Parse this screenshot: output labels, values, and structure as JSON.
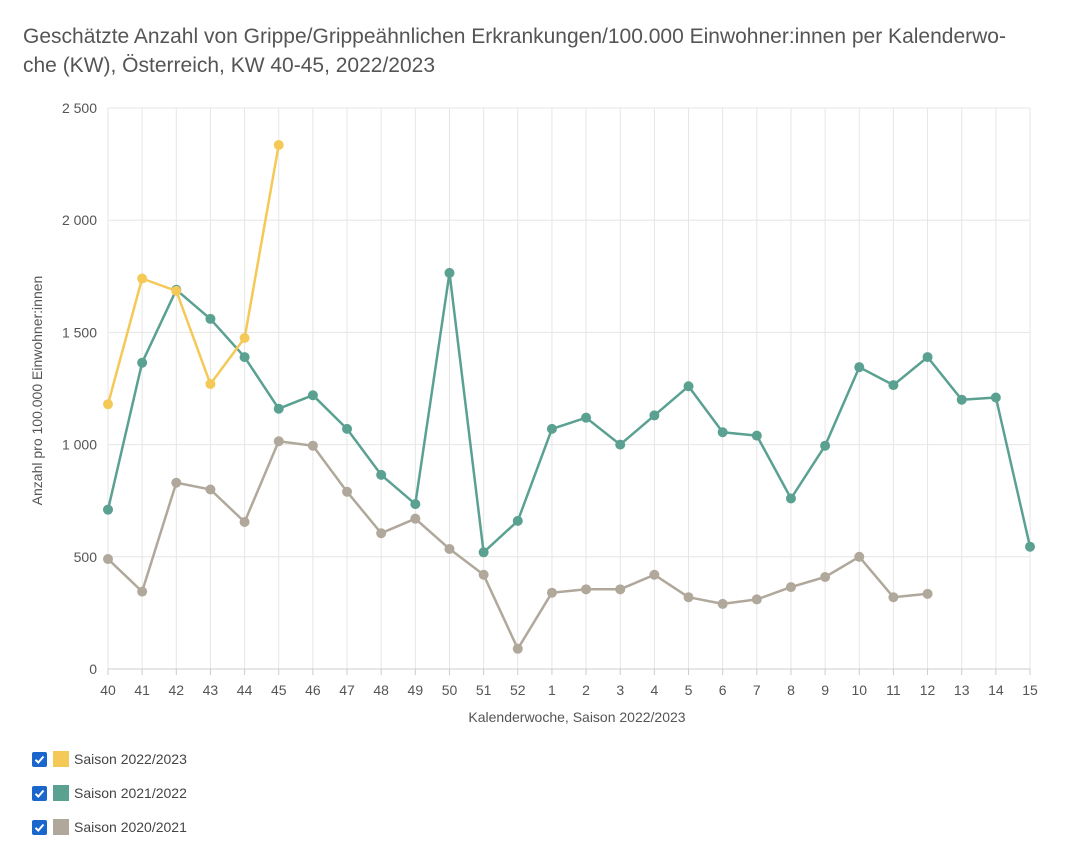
{
  "title": "Geschätzte Anzahl von Grippe/Grippeähnlichen Erkrankungen/100.000 Einwohner:innen per Kalenderwoche (KW), Österreich, KW 40-45, 2022/2023",
  "title_line1": "Geschätzte Anzahl von Grippe/Grippeähnlichen Erkrankungen/100.000 Einwohner:innen per Kalenderwo-",
  "title_line2": "che (KW), Österreich, KW 40-45, 2022/2023",
  "chart_data": {
    "type": "line",
    "categories": [
      "40",
      "41",
      "42",
      "43",
      "44",
      "45",
      "46",
      "47",
      "48",
      "49",
      "50",
      "51",
      "52",
      "1",
      "2",
      "3",
      "4",
      "5",
      "6",
      "7",
      "8",
      "9",
      "10",
      "11",
      "12",
      "13",
      "14",
      "15"
    ],
    "xlabel": "Kalenderwoche, Saison 2022/2023",
    "ylabel": "Anzahl pro 100.000 Einwohner:innen",
    "ylim": [
      0,
      2500
    ],
    "yticks": [
      0,
      500,
      1000,
      1500,
      2000,
      2500
    ],
    "ytick_labels": [
      "0",
      "500",
      "1 000",
      "1 500",
      "2 000",
      "2 500"
    ],
    "grid": true,
    "legend_position": "bottom-left",
    "series": [
      {
        "name": "Saison 2021/2022",
        "color": "#5aa192",
        "values": [
          710,
          1365,
          1690,
          1560,
          1390,
          1160,
          1220,
          1070,
          865,
          735,
          1765,
          520,
          660,
          1070,
          1120,
          1000,
          1130,
          1260,
          1055,
          1040,
          760,
          995,
          1345,
          1265,
          1390,
          1200,
          1210,
          545
        ]
      },
      {
        "name": "Saison 2020/2021",
        "color": "#b0a89b",
        "values": [
          490,
          345,
          830,
          800,
          655,
          1015,
          995,
          790,
          605,
          670,
          535,
          420,
          90,
          340,
          355,
          355,
          420,
          320,
          290,
          310,
          365,
          410,
          500,
          320,
          335,
          null,
          null,
          null
        ]
      },
      {
        "name": "Saison 2022/2023",
        "color": "#f4c957",
        "values": [
          1180,
          1740,
          1685,
          1270,
          1475,
          2335,
          null,
          null,
          null,
          null,
          null,
          null,
          null,
          null,
          null,
          null,
          null,
          null,
          null,
          null,
          null,
          null,
          null,
          null,
          null,
          null,
          null,
          null
        ]
      }
    ]
  },
  "legend": [
    {
      "label": "Saison 2022/2023",
      "color": "#f4c957",
      "checked": true
    },
    {
      "label": "Saison 2021/2022",
      "color": "#5aa192",
      "checked": true
    },
    {
      "label": "Saison 2020/2021",
      "color": "#b0a89b",
      "checked": true
    }
  ]
}
